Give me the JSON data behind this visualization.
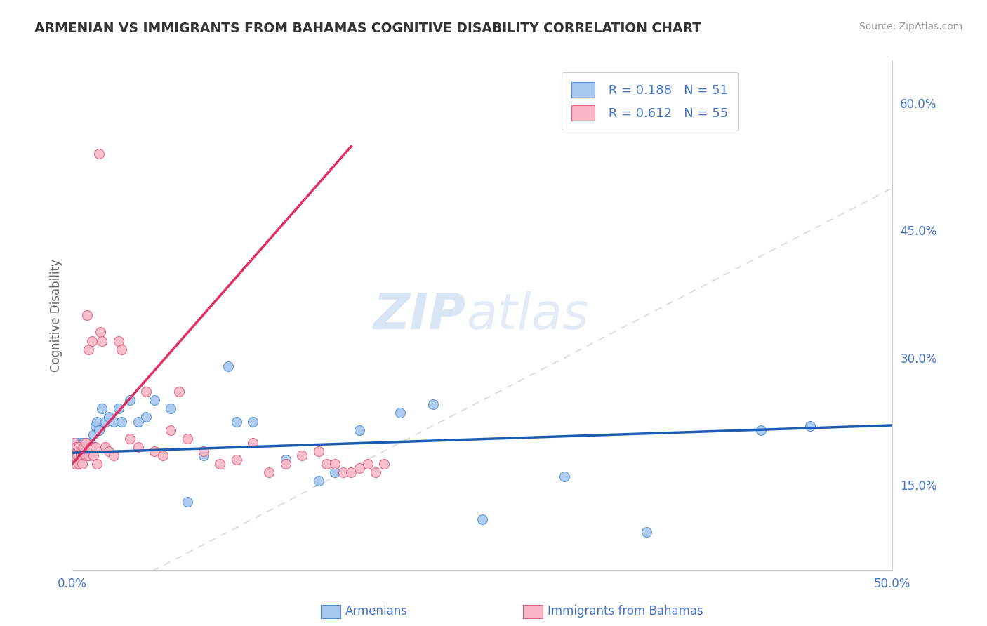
{
  "title": "ARMENIAN VS IMMIGRANTS FROM BAHAMAS COGNITIVE DISABILITY CORRELATION CHART",
  "source": "Source: ZipAtlas.com",
  "ylabel": "Cognitive Disability",
  "x_min": 0.0,
  "x_max": 0.5,
  "y_min": 0.05,
  "y_max": 0.65,
  "y_tick_positions": [
    0.15,
    0.2,
    0.25,
    0.3,
    0.35,
    0.4,
    0.45,
    0.5,
    0.55,
    0.6
  ],
  "y_tick_labels": [
    "15.0%",
    "",
    "",
    "30.0%",
    "",
    "",
    "45.0%",
    "",
    "",
    "60.0%"
  ],
  "x_tick_positions": [
    0.0,
    0.1,
    0.2,
    0.3,
    0.4,
    0.5
  ],
  "x_tick_labels": [
    "0.0%",
    "",
    "",
    "",
    "",
    "50.0%"
  ],
  "legend_armenian_R": "0.188",
  "legend_armenian_N": "51",
  "legend_bahamas_R": "0.612",
  "legend_bahamas_N": "55",
  "color_armenian_fill": "#A8C8F0",
  "color_armenian_edge": "#5090D0",
  "color_bahamas_fill": "#F8B8C8",
  "color_bahamas_edge": "#E06080",
  "color_line_armenian": "#1A5CB0",
  "color_line_bahamas": "#E0204080",
  "color_diagonal": "#D8C0C8",
  "color_title": "#333333",
  "color_axis": "#4472C4",
  "background_color": "#FFFFFF",
  "watermark_zip": "ZIP",
  "watermark_atlas": "atlas",
  "armenian_x": [
    0.001,
    0.002,
    0.002,
    0.003,
    0.003,
    0.004,
    0.004,
    0.005,
    0.005,
    0.006,
    0.006,
    0.007,
    0.007,
    0.008,
    0.008,
    0.009,
    0.01,
    0.01,
    0.011,
    0.012,
    0.013,
    0.014,
    0.015,
    0.016,
    0.018,
    0.02,
    0.022,
    0.025,
    0.028,
    0.03,
    0.035,
    0.04,
    0.045,
    0.05,
    0.06,
    0.07,
    0.08,
    0.095,
    0.1,
    0.11,
    0.13,
    0.15,
    0.16,
    0.175,
    0.2,
    0.22,
    0.25,
    0.3,
    0.35,
    0.42,
    0.45
  ],
  "armenian_y": [
    0.195,
    0.19,
    0.185,
    0.195,
    0.2,
    0.185,
    0.195,
    0.19,
    0.2,
    0.185,
    0.195,
    0.2,
    0.185,
    0.195,
    0.19,
    0.2,
    0.195,
    0.185,
    0.2,
    0.195,
    0.21,
    0.22,
    0.225,
    0.215,
    0.24,
    0.225,
    0.23,
    0.225,
    0.24,
    0.225,
    0.25,
    0.225,
    0.23,
    0.25,
    0.24,
    0.13,
    0.185,
    0.29,
    0.225,
    0.225,
    0.18,
    0.155,
    0.165,
    0.215,
    0.235,
    0.245,
    0.11,
    0.16,
    0.095,
    0.215,
    0.22
  ],
  "bahamas_x": [
    0.001,
    0.001,
    0.002,
    0.002,
    0.003,
    0.003,
    0.004,
    0.004,
    0.005,
    0.005,
    0.006,
    0.006,
    0.007,
    0.008,
    0.008,
    0.009,
    0.01,
    0.01,
    0.011,
    0.012,
    0.013,
    0.014,
    0.015,
    0.016,
    0.017,
    0.018,
    0.02,
    0.022,
    0.025,
    0.028,
    0.03,
    0.035,
    0.04,
    0.045,
    0.05,
    0.055,
    0.06,
    0.065,
    0.07,
    0.08,
    0.09,
    0.1,
    0.11,
    0.12,
    0.13,
    0.14,
    0.15,
    0.155,
    0.16,
    0.165,
    0.17,
    0.175,
    0.18,
    0.185,
    0.19
  ],
  "bahamas_y": [
    0.2,
    0.185,
    0.195,
    0.175,
    0.19,
    0.185,
    0.195,
    0.175,
    0.19,
    0.185,
    0.19,
    0.175,
    0.195,
    0.2,
    0.185,
    0.35,
    0.31,
    0.185,
    0.195,
    0.32,
    0.185,
    0.195,
    0.175,
    0.54,
    0.33,
    0.32,
    0.195,
    0.19,
    0.185,
    0.32,
    0.31,
    0.205,
    0.195,
    0.26,
    0.19,
    0.185,
    0.215,
    0.26,
    0.205,
    0.19,
    0.175,
    0.18,
    0.2,
    0.165,
    0.175,
    0.185,
    0.19,
    0.175,
    0.175,
    0.165,
    0.165,
    0.17,
    0.175,
    0.165,
    0.175
  ],
  "bahamas_line_x_start": 0.0,
  "bahamas_line_x_end": 0.17,
  "armenian_line_x_start": 0.0,
  "armenian_line_x_end": 0.5
}
